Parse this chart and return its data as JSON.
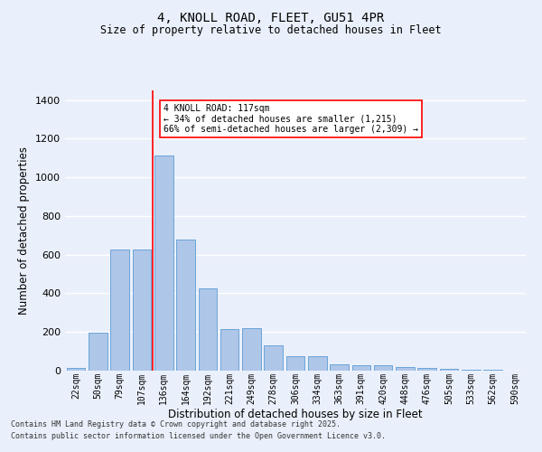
{
  "title1": "4, KNOLL ROAD, FLEET, GU51 4PR",
  "title2": "Size of property relative to detached houses in Fleet",
  "xlabel": "Distribution of detached houses by size in Fleet",
  "ylabel": "Number of detached properties",
  "categories": [
    "22sqm",
    "50sqm",
    "79sqm",
    "107sqm",
    "136sqm",
    "164sqm",
    "192sqm",
    "221sqm",
    "249sqm",
    "278sqm",
    "306sqm",
    "334sqm",
    "363sqm",
    "391sqm",
    "420sqm",
    "448sqm",
    "476sqm",
    "505sqm",
    "533sqm",
    "562sqm",
    "590sqm"
  ],
  "values": [
    15,
    195,
    625,
    625,
    1115,
    680,
    425,
    215,
    220,
    130,
    75,
    75,
    32,
    30,
    28,
    18,
    15,
    8,
    5,
    3,
    2
  ],
  "bar_color": "#aec6e8",
  "bar_edge_color": "#5b9bd5",
  "background_color": "#eaf0fb",
  "grid_color": "#ffffff",
  "vline_x": 3.5,
  "vline_color": "red",
  "annotation_text": "4 KNOLL ROAD: 117sqm\n← 34% of detached houses are smaller (1,215)\n66% of semi-detached houses are larger (2,309) →",
  "annotation_box_color": "white",
  "annotation_box_edge": "red",
  "footer1": "Contains HM Land Registry data © Crown copyright and database right 2025.",
  "footer2": "Contains public sector information licensed under the Open Government Licence v3.0.",
  "ylim": [
    0,
    1450
  ],
  "yticks": [
    0,
    200,
    400,
    600,
    800,
    1000,
    1200,
    1400
  ]
}
